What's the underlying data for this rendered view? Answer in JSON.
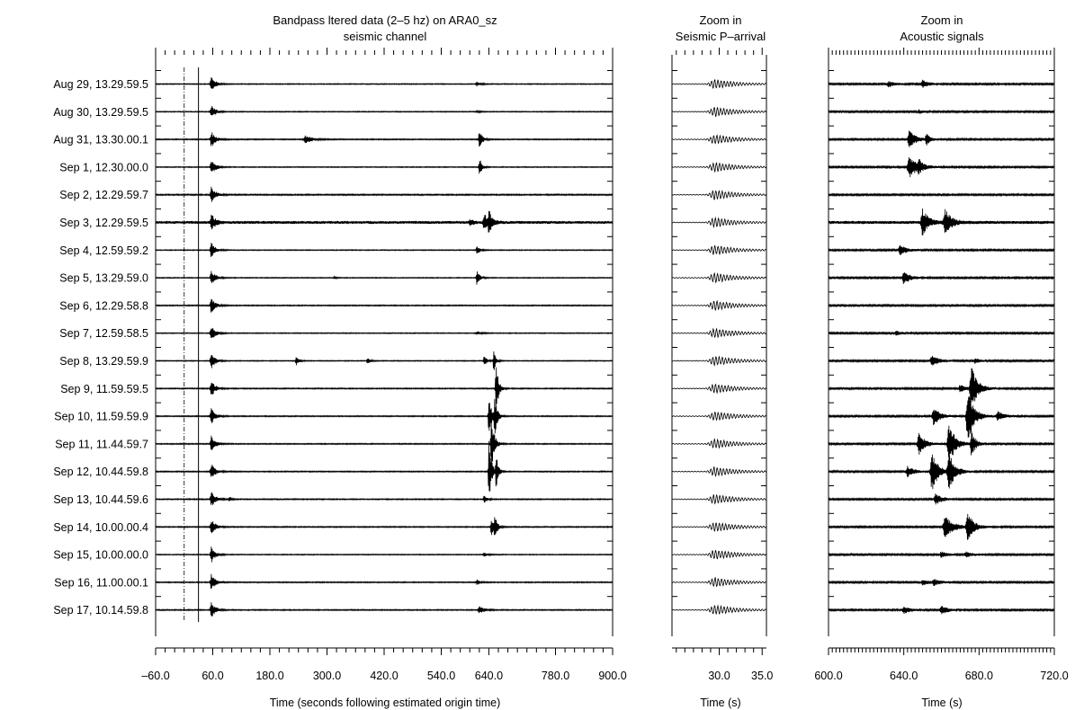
{
  "chart_data": [
    {
      "type": "line",
      "panel": "full",
      "title_lines": [
        "Bandpass  ltered data (2–5 hz) on ARA0_sz",
        "seismic channel"
      ],
      "xlabel": "Time (seconds following estimated origin time)",
      "xlim": [
        -60,
        900
      ],
      "x_ticks": [
        "–60.0",
        "60.0",
        "180.0",
        "300.0",
        "420.0",
        "540.0",
        "640.0",
        "780.0",
        "900.0"
      ],
      "x_tick_values": [
        -60,
        60,
        180,
        300,
        420,
        540,
        640,
        780,
        900
      ],
      "dashed_marker_x": 0,
      "solid_marker_x": 30,
      "series": [
        {
          "name": "Aug 29, 13.29.59.5",
          "noise": 0.5,
          "events": [
            [
              57,
              9,
              8
            ],
            [
              615,
              2.5,
              8
            ]
          ]
        },
        {
          "name": "Aug 30, 13.29.59.5",
          "noise": 0.5,
          "events": [
            [
              57,
              8,
              8
            ],
            [
              615,
              1.5,
              6
            ]
          ]
        },
        {
          "name": "Aug 31, 13.30.00.1",
          "noise": 0.6,
          "events": [
            [
              57,
              9,
              8
            ],
            [
              255,
              4,
              14
            ],
            [
              620,
              10,
              6
            ]
          ]
        },
        {
          "name": "Sep 1, 12.30.00.0",
          "noise": 0.5,
          "events": [
            [
              57,
              9,
              8
            ],
            [
              620,
              11,
              5
            ]
          ]
        },
        {
          "name": "Sep 2, 12.29.59.7",
          "noise": 0.7,
          "events": [
            [
              57,
              9,
              8
            ]
          ]
        },
        {
          "name": "Sep 3, 12.29.59.5",
          "noise": 1.6,
          "events": [
            [
              57,
              9,
              8
            ],
            [
              630,
              10,
              8
            ],
            [
              640,
              12,
              6
            ],
            [
              600,
              3,
              8
            ]
          ]
        },
        {
          "name": "Sep 4, 12.59.59.2",
          "noise": 0.5,
          "events": [
            [
              57,
              9,
              8
            ],
            [
              615,
              5,
              6
            ]
          ]
        },
        {
          "name": "Sep 5, 13.29.59.0",
          "noise": 0.5,
          "events": [
            [
              57,
              9,
              8
            ],
            [
              615,
              8,
              6
            ],
            [
              315,
              2,
              3
            ]
          ]
        },
        {
          "name": "Sep 6, 12.29.58.8",
          "noise": 0.6,
          "events": [
            [
              57,
              9,
              8
            ]
          ]
        },
        {
          "name": "Sep 7, 12.59.58.5",
          "noise": 0.5,
          "events": [
            [
              57,
              9,
              8
            ],
            [
              615,
              2,
              8
            ]
          ]
        },
        {
          "name": "Sep 8, 13.29.59.9",
          "noise": 0.5,
          "events": [
            [
              57,
              9,
              8
            ],
            [
              235,
              6,
              5
            ],
            [
              385,
              4,
              5
            ],
            [
              630,
              6,
              5
            ],
            [
              650,
              14,
              4
            ]
          ]
        },
        {
          "name": "Sep 9, 11.59.59.5",
          "noise": 0.6,
          "events": [
            [
              57,
              9,
              8
            ],
            [
              655,
              30,
              5
            ]
          ]
        },
        {
          "name": "Sep 10, 11.59.59.9",
          "noise": 0.6,
          "events": [
            [
              57,
              9,
              8
            ],
            [
              640,
              20,
              6
            ],
            [
              652,
              22,
              5
            ]
          ]
        },
        {
          "name": "Sep 11, 11.44.59.7",
          "noise": 0.6,
          "events": [
            [
              57,
              9,
              8
            ],
            [
              645,
              34,
              6
            ]
          ]
        },
        {
          "name": "Sep 12, 10.44.59.8",
          "noise": 0.6,
          "events": [
            [
              57,
              9,
              8
            ],
            [
              640,
              38,
              5
            ],
            [
              655,
              22,
              4
            ]
          ]
        },
        {
          "name": "Sep 13, 10.44.59.6",
          "noise": 0.6,
          "events": [
            [
              57,
              9,
              8
            ],
            [
              95,
              3,
              4
            ],
            [
              630,
              4,
              6
            ]
          ]
        },
        {
          "name": "Sep 14, 10.00.00.4",
          "noise": 0.6,
          "events": [
            [
              57,
              9,
              8
            ],
            [
              645,
              10,
              6
            ],
            [
              652,
              16,
              4
            ]
          ]
        },
        {
          "name": "Sep 15, 10.00.00.0",
          "noise": 0.5,
          "events": [
            [
              57,
              9,
              8
            ],
            [
              630,
              2,
              8
            ]
          ]
        },
        {
          "name": "Sep 16, 11.00.00.1",
          "noise": 0.6,
          "events": [
            [
              57,
              9,
              8
            ],
            [
              615,
              3,
              6
            ]
          ]
        },
        {
          "name": "Sep 17, 10.14.59.8",
          "noise": 0.6,
          "events": [
            [
              57,
              9,
              8
            ],
            [
              620,
              4,
              10
            ]
          ]
        }
      ]
    },
    {
      "type": "line",
      "panel": "p-arrival",
      "title_lines": [
        "Zoom in",
        "Seismic P–arrival"
      ],
      "xlabel": "Time (s)",
      "xlim": [
        24.5,
        35.5
      ],
      "x_ticks": [
        "30.0",
        "35.0"
      ],
      "x_tick_values": [
        30,
        35
      ]
    },
    {
      "type": "line",
      "panel": "acoustic",
      "title_lines": [
        "Zoom in",
        "Acoustic signals"
      ],
      "xlabel": "Time (s)",
      "xlim": [
        600,
        720
      ],
      "x_ticks": [
        "600.0",
        "640.0",
        "680.0",
        "720.0"
      ],
      "x_tick_values": [
        600,
        640,
        680,
        720
      ]
    }
  ]
}
